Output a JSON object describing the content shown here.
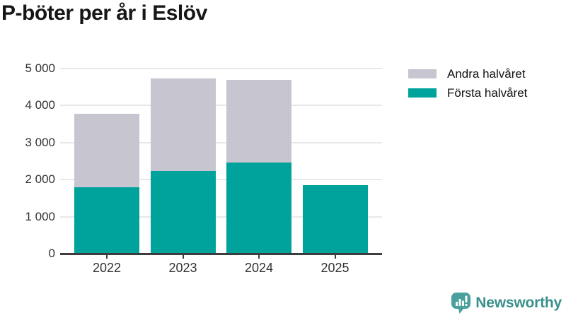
{
  "chart_data": {
    "type": "bar",
    "stacked": true,
    "title": "P-böter per år i Eslöv",
    "categories": [
      "2022",
      "2023",
      "2024",
      "2025"
    ],
    "series": [
      {
        "name": "Första halvåret",
        "color": "#00a39b",
        "values": [
          1800,
          2240,
          2460,
          1850
        ]
      },
      {
        "name": "Andra halvåret",
        "color": "#c7c6d0",
        "values": [
          1980,
          2490,
          2230,
          0
        ]
      }
    ],
    "totals": [
      3780,
      4730,
      4690,
      1850
    ],
    "xlabel": "",
    "ylabel": "",
    "ylim": [
      0,
      5000
    ],
    "ytick_step": 1000,
    "ytick_labels": [
      "0",
      "1 000",
      "2 000",
      "3 000",
      "4 000",
      "5 000"
    ],
    "grid": true,
    "legend_position": "top-right",
    "legend_order": [
      "Andra halvåret",
      "Första halvåret"
    ]
  },
  "colors": {
    "grid": "#e8e8ea",
    "axis": "#3d3d3d",
    "axis_text": "#333333",
    "title_text": "#161616",
    "legend_text": "#111111"
  },
  "branding": {
    "name": "Newsworthy",
    "icon": "newsworthy-bubble-chart-icon",
    "icon_color": "#4aa09d",
    "text_color": "#3a908c"
  }
}
